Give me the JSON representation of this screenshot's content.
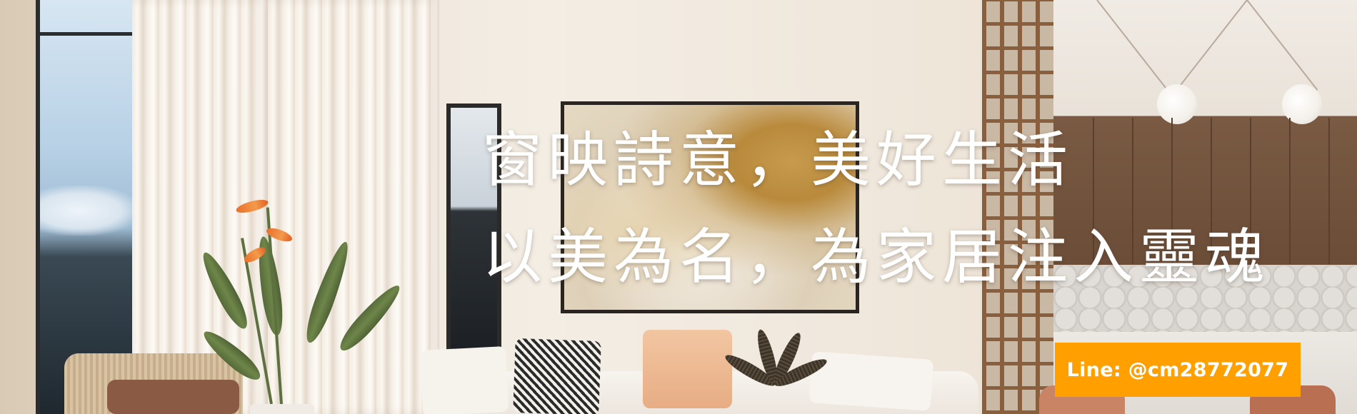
{
  "banner": {
    "headline_line_1": "窗映詩意，美好生活",
    "headline_line_2": "以美為名，為家居注入靈魂",
    "contact_label": "Line: @cm28772077"
  },
  "colors": {
    "badge_background": "#ff9f00",
    "headline_text": "#ffffff",
    "wall": "#efe6da"
  }
}
